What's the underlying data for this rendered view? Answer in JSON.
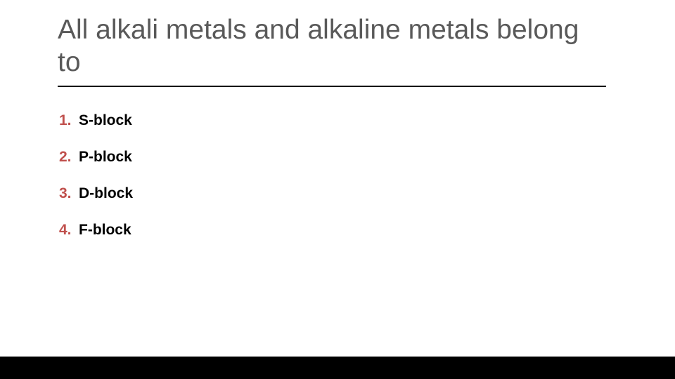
{
  "slide": {
    "title": "All alkali metals and alkaline metals belong to",
    "title_color": "#595959",
    "title_fontsize": 39,
    "rule_color": "#000000",
    "options": [
      {
        "num": "1.",
        "text": "S-block"
      },
      {
        "num": "2.",
        "text": "P-block"
      },
      {
        "num": "3.",
        "text": "D-block"
      },
      {
        "num": "4.",
        "text": "F-block"
      }
    ],
    "option_number_color": "#c0504d",
    "option_text_color": "#000000",
    "option_fontsize": 21,
    "background_color": "#ffffff",
    "bottom_bar_color": "#000000"
  }
}
